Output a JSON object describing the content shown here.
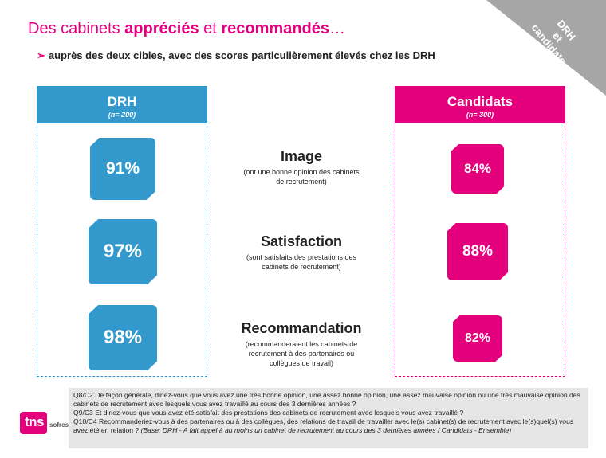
{
  "title": {
    "part1": "Des cabinets ",
    "bold1": "appréciés",
    "part2": " et ",
    "bold2": "recommandés",
    "part3": "…"
  },
  "subtitle": {
    "arrow": "➢",
    "text": "auprès des deux cibles, avec des scores particulièrement élevés chez les DRH"
  },
  "corner": {
    "line1": "DRH",
    "line2": "et",
    "line3": "candidats"
  },
  "columns": {
    "drh": {
      "name": "DRH",
      "n": "(n= 200)"
    },
    "cand": {
      "name": "Candidats",
      "n": "(n= 300)"
    }
  },
  "rows": [
    {
      "title": "Image",
      "desc": "(ont une bonne opinion des cabinets de recrutement)",
      "drh": "91%",
      "cand": "84%",
      "drh_value": 91,
      "cand_value": 84
    },
    {
      "title": "Satisfaction",
      "desc": "(sont satisfaits des prestations des cabinets de recrutement)",
      "drh": "97%",
      "cand": "88%",
      "drh_value": 97,
      "cand_value": 88
    },
    {
      "title": "Recommandation",
      "desc": "(recommanderaient les cabinets de recrutement à des partenaires ou collègues de travail)",
      "drh": "98%",
      "cand": "82%",
      "drh_value": 98,
      "cand_value": 82
    }
  ],
  "footer": {
    "q1": "Q8/C2 De façon générale, diriez-vous que vous avez une très bonne opinion, une assez bonne opinion, une assez mauvaise opinion ou une très mauvaise opinion des cabinets de recrutement avec lesquels vous avez travaillé au cours des 3 dernières années ?",
    "q2": "Q9/C3 Et diriez-vous que vous avez été satisfait des prestations des cabinets de recrutement avec lesquels vous avez travaillé ?",
    "q3": "Q10/C4 Recommanderiez-vous à des partenaires ou à des collègues, des relations de travail de travailler avec le(s) cabinet(s) de recrutement avec le(s)quel(s) vous avez été en relation ?",
    "base": "(Base: DRH - A fait appel à au moins un cabinet de recrutement au cours des 3 dernières années / Candidats - Ensemble)"
  },
  "logo": {
    "tns": "tns",
    "sofres": "sofres"
  },
  "colors": {
    "blue": "#3399cc",
    "pink": "#e4007c",
    "grey": "#a6a6a6"
  }
}
